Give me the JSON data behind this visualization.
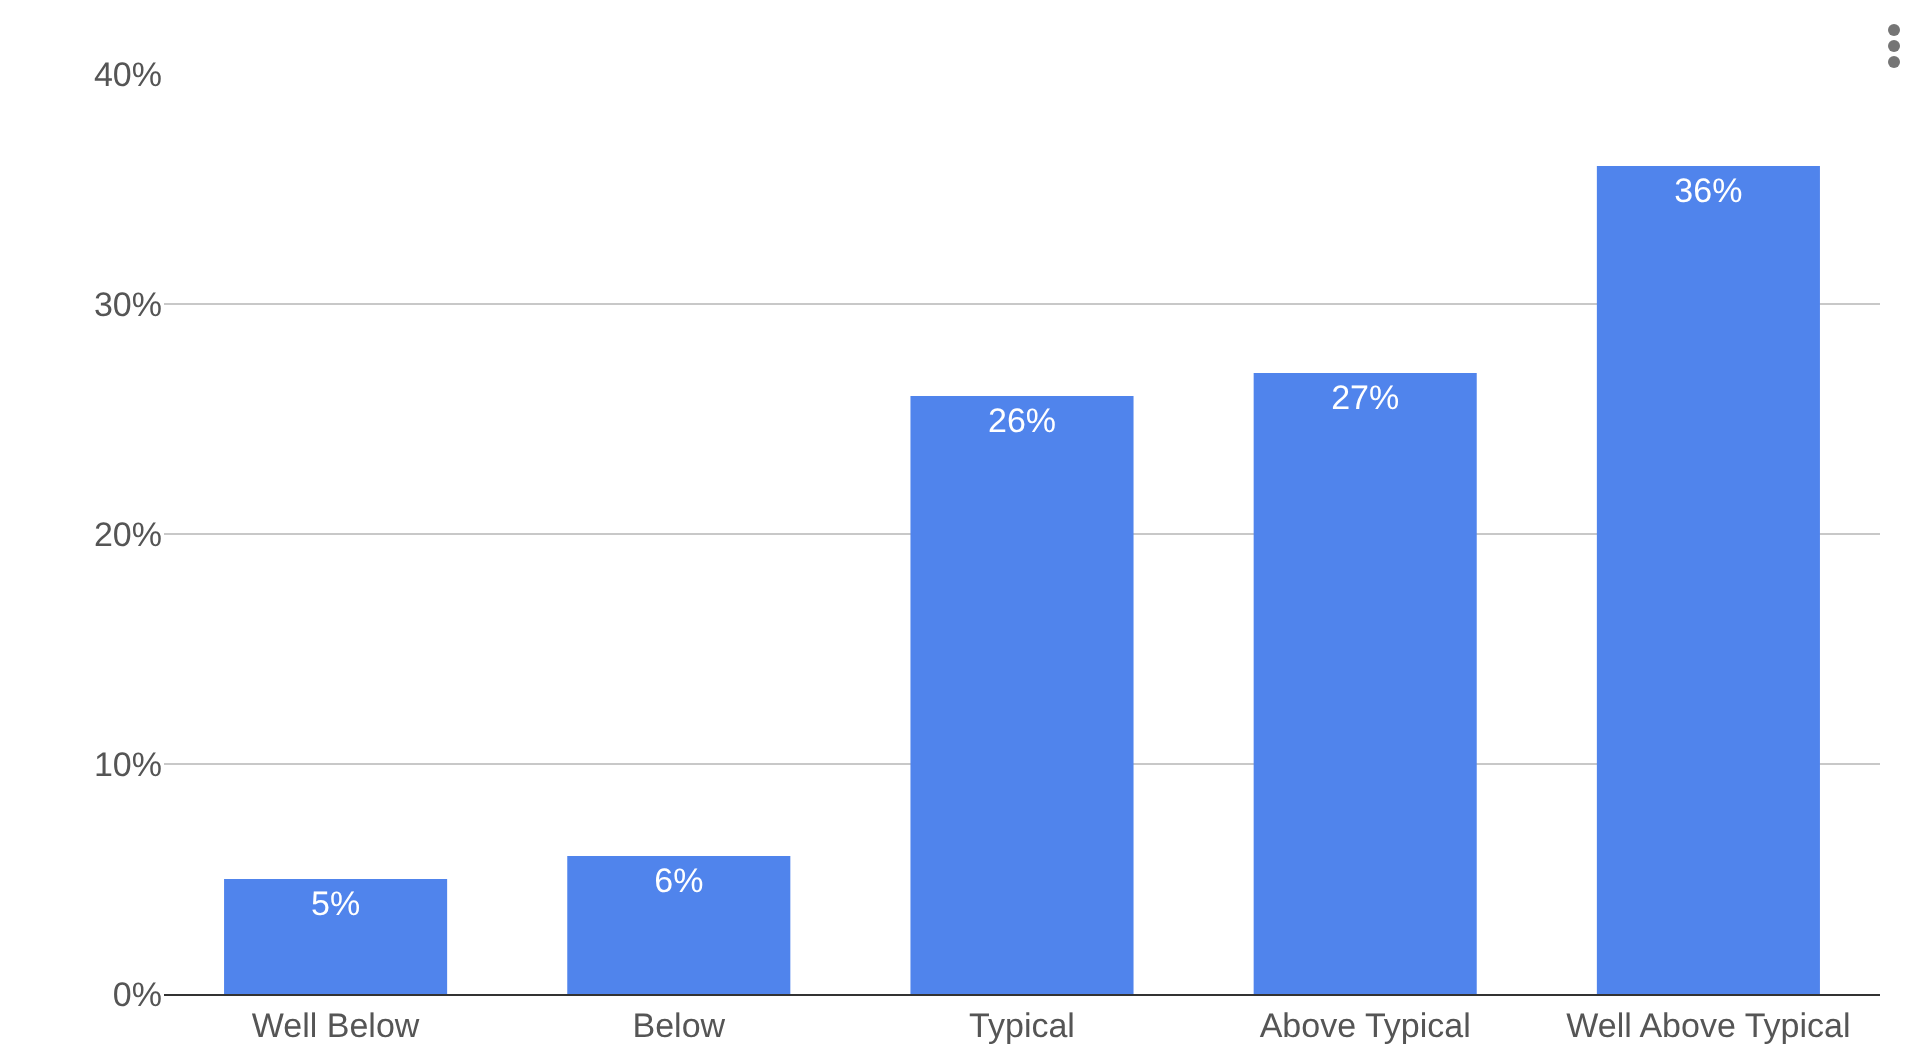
{
  "chart_data": {
    "type": "bar",
    "categories": [
      "Well Below",
      "Below",
      "Typical",
      "Above Typical",
      "Well Above Typical"
    ],
    "values": [
      5,
      6,
      26,
      27,
      36
    ],
    "value_labels": [
      "5%",
      "6%",
      "26%",
      "27%",
      "36%"
    ],
    "color": "#5084ec",
    "ylim": [
      0,
      40
    ],
    "yticks": [
      {
        "value": 0,
        "label": "0%"
      },
      {
        "value": 10,
        "label": "10%"
      },
      {
        "value": 20,
        "label": "20%"
      },
      {
        "value": 30,
        "label": "30%"
      },
      {
        "value": 40,
        "label": "40%"
      }
    ],
    "grid": "y"
  }
}
